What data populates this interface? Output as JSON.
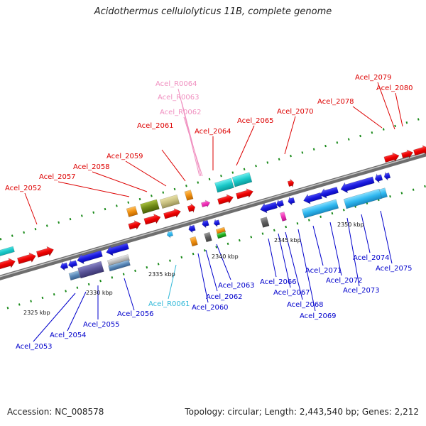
{
  "title": "Acidothermus cellulolyticus 11B, complete genome",
  "footer": {
    "accession": "Accession: NC_008578",
    "summary": "Topology: circular; Length: 2,443,540 bp; Genes: 2,212"
  },
  "colors": {
    "forward_label": "#dd0000",
    "reverse_label": "#0000cc",
    "rna_forward_label": "#f090c0",
    "rna_reverse_label": "#30b8d8",
    "backbone": "#888888",
    "tick": "#1a8a1a"
  },
  "kbp_marks": [
    "2325 kbp",
    "2330 kbp",
    "2335 kbp",
    "2340 kbp",
    "2345 kbp",
    "2350 kbp"
  ],
  "upper_labels": [
    {
      "text": "Acel_2052",
      "kind": "forward"
    },
    {
      "text": "Acel_2057",
      "kind": "forward"
    },
    {
      "text": "Acel_2058",
      "kind": "forward"
    },
    {
      "text": "Acel_2059",
      "kind": "forward"
    },
    {
      "text": "Acel_2061",
      "kind": "forward"
    },
    {
      "text": "Acel_R0064",
      "kind": "rna_forward"
    },
    {
      "text": "Acel_R0063",
      "kind": "rna_forward"
    },
    {
      "text": "Acel_R0062",
      "kind": "rna_forward"
    },
    {
      "text": "Acel_2064",
      "kind": "forward"
    },
    {
      "text": "Acel_2065",
      "kind": "forward"
    },
    {
      "text": "Acel_2070",
      "kind": "forward"
    },
    {
      "text": "Acel_2078",
      "kind": "forward"
    },
    {
      "text": "Acel_2079",
      "kind": "forward"
    },
    {
      "text": "Acel_2080",
      "kind": "forward"
    }
  ],
  "lower_labels": [
    {
      "text": "Acel_2053",
      "kind": "reverse"
    },
    {
      "text": "Acel_2054",
      "kind": "reverse"
    },
    {
      "text": "Acel_2055",
      "kind": "reverse"
    },
    {
      "text": "Acel_2056",
      "kind": "reverse"
    },
    {
      "text": "Acel_R0061",
      "kind": "rna_reverse"
    },
    {
      "text": "Acel_2060",
      "kind": "reverse"
    },
    {
      "text": "Acel_2062",
      "kind": "reverse"
    },
    {
      "text": "Acel_2063",
      "kind": "reverse"
    },
    {
      "text": "Acel_2066",
      "kind": "reverse"
    },
    {
      "text": "Acel_2067",
      "kind": "reverse"
    },
    {
      "text": "Acel_2068",
      "kind": "reverse"
    },
    {
      "text": "Acel_2069",
      "kind": "reverse"
    },
    {
      "text": "Acel_2071",
      "kind": "reverse"
    },
    {
      "text": "Acel_2072",
      "kind": "reverse"
    },
    {
      "text": "Acel_2073",
      "kind": "reverse"
    },
    {
      "text": "Acel_2074",
      "kind": "reverse"
    },
    {
      "text": "Acel_2075",
      "kind": "reverse"
    }
  ]
}
